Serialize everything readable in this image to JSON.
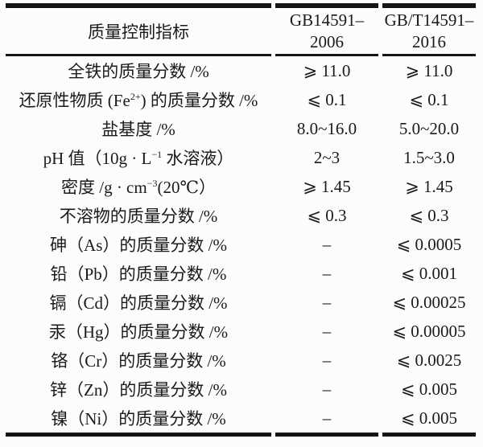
{
  "table": {
    "header": {
      "indicator": "质量控制指标",
      "std2006": {
        "line1": "GB14591–",
        "line2": "2006"
      },
      "std2016": {
        "line1": "GB/T14591–",
        "line2": "2016"
      }
    },
    "rows": [
      {
        "label": "全铁的质量分数 /%",
        "gb2006": "⩾ 11.0",
        "gbt2016": "⩾ 11.0"
      },
      {
        "label_pre": "还原性物质 (Fe",
        "label_sup": "2+",
        "label_post": ") 的质量分数 /%",
        "gb2006": "⩽ 0.1",
        "gbt2016": "⩽ 0.1"
      },
      {
        "label": "盐基度 /%",
        "gb2006": "8.0~16.0",
        "gbt2016": "5.0~20.0"
      },
      {
        "label_pre": "pH 值（10g · L",
        "label_sup": "−1",
        "label_post": " 水溶液）",
        "gb2006": "2~3",
        "gbt2016": "1.5~3.0"
      },
      {
        "label_pre": "密度 /g · cm",
        "label_sup": "−3",
        "label_post": "(20℃）",
        "gb2006": "⩾ 1.45",
        "gbt2016": "⩾ 1.45"
      },
      {
        "label": "不溶物的质量分数 /%",
        "gb2006": "⩽ 0.3",
        "gbt2016": "⩽ 0.3"
      },
      {
        "label": "砷（As）的质量分数 /%",
        "gb2006": "–",
        "gbt2016": "⩽ 0.0005"
      },
      {
        "label": "铅（Pb）的质量分数 /%",
        "gb2006": "–",
        "gbt2016": "⩽ 0.001"
      },
      {
        "label": "镉（Cd）的质量分数 /%",
        "gb2006": "–",
        "gbt2016": "⩽ 0.00025"
      },
      {
        "label": "汞（Hg）的质量分数 /%",
        "gb2006": "–",
        "gbt2016": "⩽ 0.00005"
      },
      {
        "label": "铬（Cr）的质量分数 /%",
        "gb2006": "–",
        "gbt2016": "⩽ 0.0025"
      },
      {
        "label": "锌（Zn）的质量分数 /%",
        "gb2006": "–",
        "gbt2016": "⩽ 0.005"
      },
      {
        "label": "镍（Ni）的质量分数 /%",
        "gb2006": "–",
        "gbt2016": "⩽ 0.005"
      }
    ],
    "rule_color": "#141414"
  }
}
